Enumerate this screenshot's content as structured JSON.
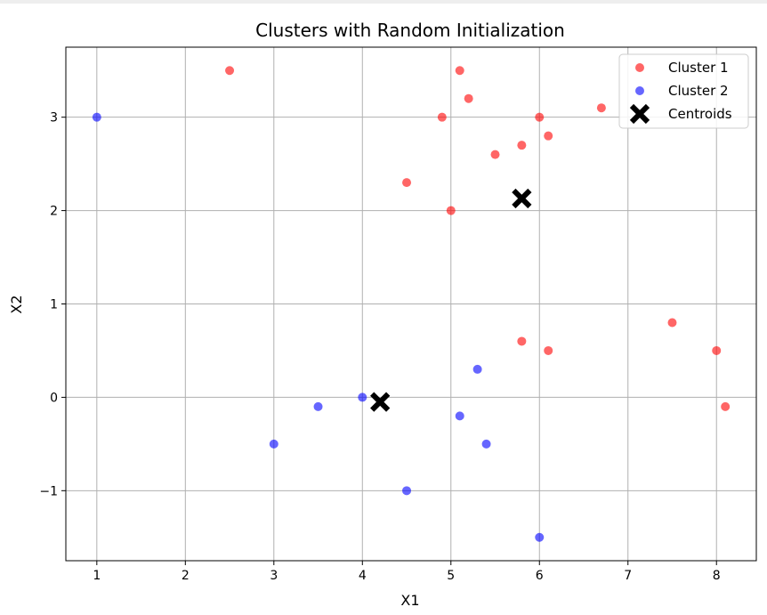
{
  "chart_data": {
    "type": "scatter",
    "title": "Clusters with Random Initialization",
    "xlabel": "X1",
    "ylabel": "X2",
    "xlim": [
      0.65,
      8.45
    ],
    "ylim": [
      -1.75,
      3.75
    ],
    "xticks": [
      1,
      2,
      3,
      4,
      5,
      6,
      7,
      8
    ],
    "yticks": [
      -1,
      0,
      1,
      2,
      3
    ],
    "xtick_labels": [
      "1",
      "2",
      "3",
      "4",
      "5",
      "6",
      "7",
      "8"
    ],
    "ytick_labels": [
      "−1",
      "0",
      "1",
      "2",
      "3"
    ],
    "grid": true,
    "legend_position": "top-right",
    "series": [
      {
        "name": "Cluster 1",
        "color": "#ff0000",
        "marker": "circle",
        "points": [
          [
            2.5,
            3.5
          ],
          [
            5.1,
            3.5
          ],
          [
            5.2,
            3.2
          ],
          [
            4.9,
            3.0
          ],
          [
            6.0,
            3.0
          ],
          [
            6.7,
            3.1
          ],
          [
            6.1,
            2.8
          ],
          [
            5.8,
            2.7
          ],
          [
            5.5,
            2.6
          ],
          [
            4.5,
            2.3
          ],
          [
            5.0,
            2.0
          ],
          [
            7.5,
            0.8
          ],
          [
            5.8,
            0.6
          ],
          [
            6.1,
            0.5
          ],
          [
            8.0,
            0.5
          ],
          [
            8.1,
            -0.1
          ]
        ]
      },
      {
        "name": "Cluster 2",
        "color": "#0000ff",
        "marker": "circle",
        "points": [
          [
            1.0,
            3.0
          ],
          [
            4.0,
            0.0
          ],
          [
            3.5,
            -0.1
          ],
          [
            3.0,
            -0.5
          ],
          [
            5.3,
            0.3
          ],
          [
            5.1,
            -0.2
          ],
          [
            5.4,
            -0.5
          ],
          [
            4.5,
            -1.0
          ],
          [
            6.0,
            -1.5
          ]
        ]
      },
      {
        "name": "Centroids",
        "color": "#000000",
        "marker": "x",
        "points": [
          [
            5.8,
            2.13
          ],
          [
            4.2,
            -0.05
          ]
        ]
      }
    ]
  }
}
